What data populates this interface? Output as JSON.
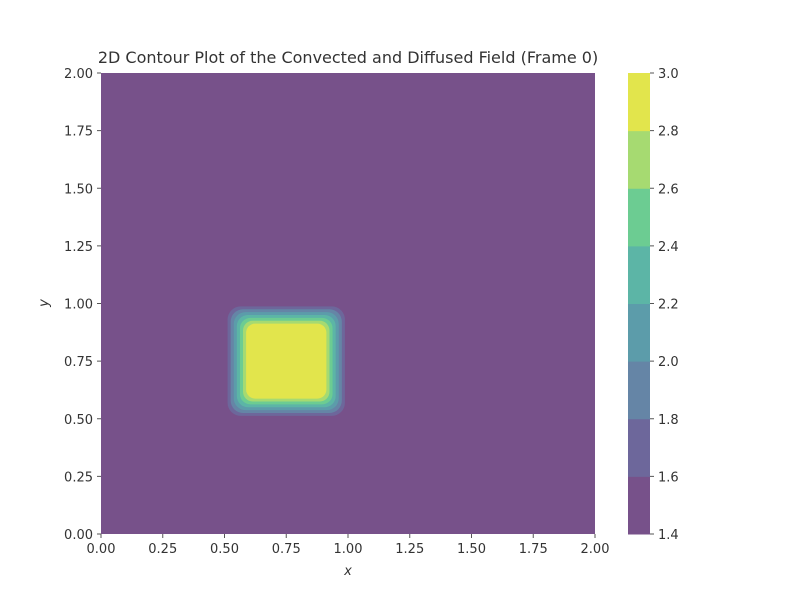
{
  "chart_data": {
    "type": "contour",
    "title": "2D Contour Plot of the Convected and Diffused Field (Frame 0)",
    "xlabel": "x",
    "ylabel": "y",
    "xlim": [
      0.0,
      2.0
    ],
    "ylim": [
      0.0,
      2.0
    ],
    "x_ticks": [
      "0.00",
      "0.25",
      "0.50",
      "0.75",
      "1.00",
      "1.25",
      "1.50",
      "1.75",
      "2.00"
    ],
    "y_ticks": [
      "0.00",
      "0.25",
      "0.50",
      "0.75",
      "1.00",
      "1.25",
      "1.50",
      "1.75",
      "2.00"
    ],
    "field": {
      "background_value": 1.4,
      "peak_value": 3.0,
      "peak_region": {
        "x": [
          0.6,
          0.9
        ],
        "y": [
          0.6,
          0.9
        ]
      },
      "transition_width": 0.1
    },
    "contour_levels": [
      1.4,
      1.6,
      1.8,
      2.0,
      2.2,
      2.4,
      2.6,
      2.8,
      3.0
    ],
    "level_colors": [
      "#77518a",
      "#6d679b",
      "#6585a6",
      "#5c9caa",
      "#5cb5a6",
      "#6ccc92",
      "#a6da71",
      "#e2e54c"
    ],
    "colorbar": {
      "tick_labels": [
        "1.4",
        "1.6",
        "1.8",
        "2.0",
        "2.2",
        "2.4",
        "2.6",
        "2.8",
        "3.0"
      ]
    }
  }
}
